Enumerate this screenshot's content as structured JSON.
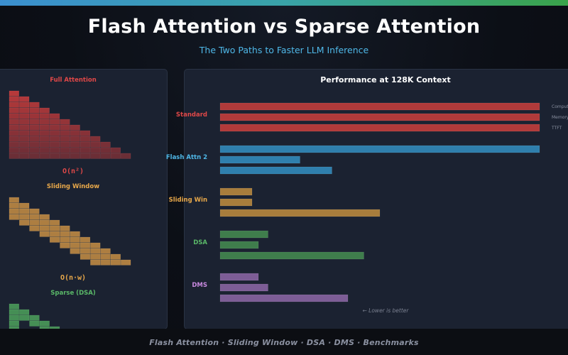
{
  "header": {
    "title": "Flash Attention vs Sparse Attention",
    "subtitle": "The Two Paths to Faster LLM Inference"
  },
  "left_panel": {
    "sections": [
      {
        "label": "Full Attention",
        "complexity": "O(n²)",
        "color": "#e04848"
      },
      {
        "label": "Sliding Window",
        "complexity": "O(n·w)",
        "color": "#e8a84a"
      },
      {
        "label": "Sparse (DSA)",
        "complexity": "",
        "color": "#5ab868"
      }
    ]
  },
  "footer": {
    "text": "Flash Attention  ·  Sliding Window  ·  DSA  ·  DMS  ·  Benchmarks"
  },
  "chart_data": {
    "type": "bar",
    "orientation": "horizontal",
    "title": "Performance at 128K Context",
    "categories": [
      "Standard",
      "Flash Attn 2",
      "Sliding Win",
      "DSA",
      "DMS"
    ],
    "series": [
      {
        "name": "Compute",
        "values": [
          100,
          100,
          10,
          15,
          12
        ]
      },
      {
        "name": "Memory",
        "values": [
          100,
          25,
          10,
          12,
          15
        ]
      },
      {
        "name": "TTFT",
        "values": [
          100,
          35,
          50,
          45,
          40
        ]
      }
    ],
    "category_colors": {
      "Standard": "#b13a3a",
      "Flash Attn 2": "#2f7fad",
      "Sliding Win": "#a87d3c",
      "DSA": "#3f7d4c",
      "DMS": "#7d5d96"
    },
    "label_colors": {
      "Standard": "#e04848",
      "Flash Attn 2": "#4fb8e8",
      "Sliding Win": "#e8a84a",
      "DSA": "#5ab868",
      "DMS": "#c98ae0"
    },
    "xlim": [
      0,
      100
    ],
    "grid": false,
    "annotation": "← Lower is better"
  }
}
